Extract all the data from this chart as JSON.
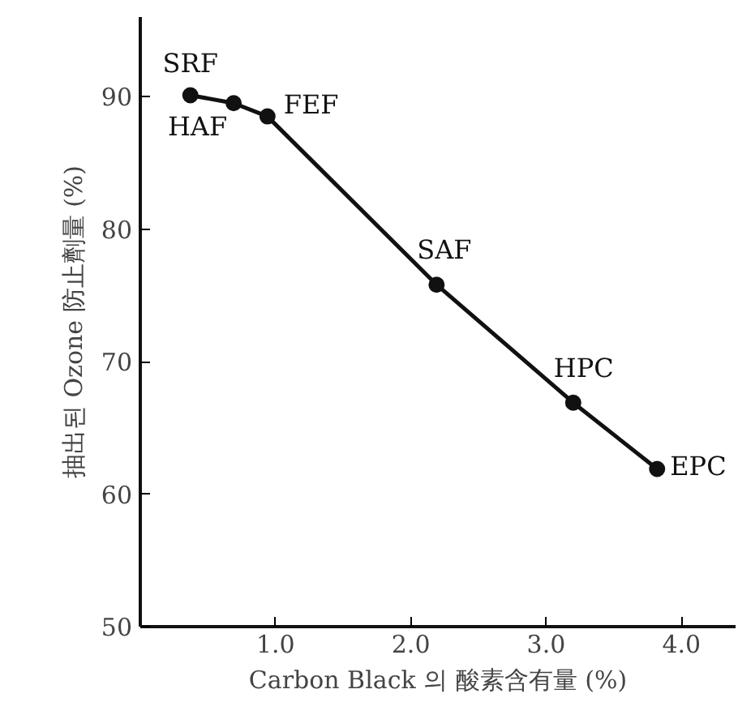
{
  "chart_data": {
    "type": "line",
    "xlabel": "Carbon Black 의 酸素含有量 (%)",
    "ylabel": "抽出된 Ozone 防止劑量 (%)",
    "x": [
      0.37,
      0.69,
      0.94,
      2.19,
      3.2,
      3.82
    ],
    "series": [
      {
        "color": "#111111",
        "values": [
          90.1,
          89.5,
          88.5,
          75.8,
          66.9,
          61.9
        ]
      }
    ],
    "marker": "circle",
    "line_style": "solid",
    "grid": false,
    "xlim": [
      0,
      4.4
    ],
    "ylim": [
      50,
      96
    ],
    "xticks": [
      {
        "value": 1,
        "label": "1.0"
      },
      {
        "value": 2,
        "label": "2.0"
      },
      {
        "value": 3,
        "label": "3.0"
      },
      {
        "value": 4,
        "label": "4.0"
      }
    ],
    "yticks": [
      50,
      60,
      70,
      80,
      90
    ],
    "annotations": [
      {
        "text": "SRF",
        "x": 0.37,
        "y": 90.1
      },
      {
        "text": "HAF",
        "x": 0.69,
        "y": 89.5
      },
      {
        "text": "FEF",
        "x": 0.94,
        "y": 88.5
      },
      {
        "text": "SAF",
        "x": 2.19,
        "y": 75.8
      },
      {
        "text": "HPC",
        "x": 3.2,
        "y": 66.9
      },
      {
        "text": "EPC",
        "x": 3.82,
        "y": 61.9
      }
    ]
  }
}
